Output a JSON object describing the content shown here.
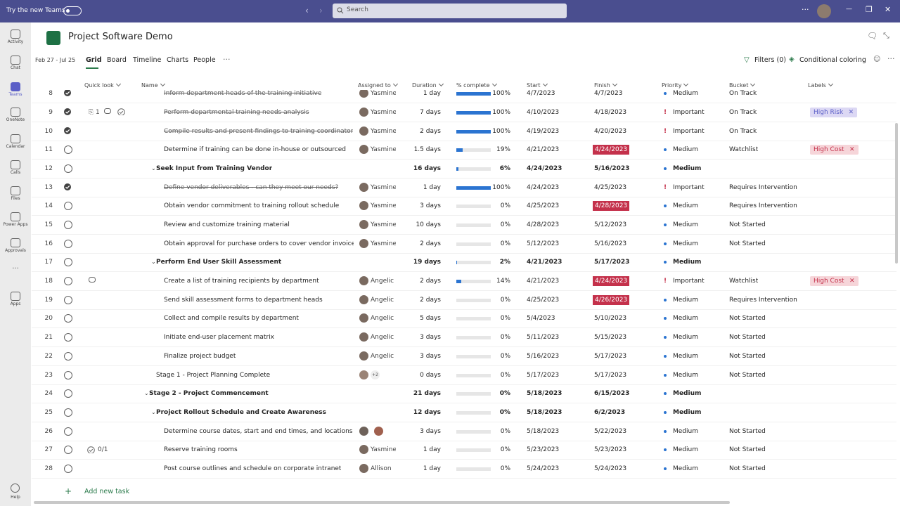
{
  "topbar": {
    "try_new_teams": "Try the new Teams",
    "search": "Search"
  },
  "sidebar": {
    "items": [
      "Activity",
      "Chat",
      "Teams",
      "OneNote",
      "Calendar",
      "Calls",
      "Files",
      "Power Apps",
      "Approvals",
      "Apps"
    ],
    "active": "Teams",
    "more": "...",
    "help": "Help"
  },
  "app": {
    "title": "Project Software Demo",
    "date_range": "Feb 27 - Jul 25",
    "tabs": [
      "Grid",
      "Board",
      "Timeline",
      "Charts",
      "People"
    ],
    "active_tab": "Grid",
    "filters": "Filters (0)",
    "conditional_coloring": "Conditional coloring"
  },
  "table": {
    "columns": [
      "Quick look",
      "Name",
      "Assigned to",
      "Duration",
      "% complete",
      "Start",
      "Finish",
      "Priority",
      "Bucket",
      "Labels"
    ],
    "rows": [
      {
        "n": "8",
        "done": true,
        "level": 2,
        "name": "Inform department heads of the training initiative",
        "assignee": "Yasmine",
        "duration": "1 day",
        "complete": "100%",
        "start": "4/7/2023",
        "finish": "4/7/2023",
        "priority": "Medium",
        "bucket": "On Track"
      },
      {
        "n": "9",
        "done": true,
        "level": 2,
        "attachments": "1",
        "comment": true,
        "checked": true,
        "name": "Perform departmental training needs analysis",
        "assignee": "Yasmine",
        "duration": "7 days",
        "complete": "100%",
        "start": "4/10/2023",
        "finish": "4/18/2023",
        "priority": "Important",
        "bucket": "On Track",
        "label": "High Risk"
      },
      {
        "n": "10",
        "done": true,
        "level": 2,
        "name": "Compile results and present findings to training coordinator",
        "assignee": "Yasmine",
        "duration": "2 days",
        "complete": "100%",
        "start": "4/19/2023",
        "finish": "4/20/2023",
        "priority": "Important",
        "bucket": "On Track"
      },
      {
        "n": "11",
        "done": false,
        "level": 2,
        "name": "Determine if training can be done in-house or outsourced",
        "assignee": "Yasmine",
        "duration": "1.5 days",
        "complete": "19%",
        "start": "4/21/2023",
        "finish": "4/24/2023",
        "late": true,
        "priority": "Medium",
        "bucket": "Watchlist",
        "label": "High Cost"
      },
      {
        "n": "12",
        "done": false,
        "level": 1,
        "summary": true,
        "name": "Seek Input from Training Vendor",
        "duration": "16 days",
        "complete": "6%",
        "start": "4/24/2023",
        "finish": "5/16/2023",
        "priority": "Medium"
      },
      {
        "n": "13",
        "done": true,
        "level": 2,
        "name": "Define vendor deliverables - can they meet our needs?",
        "assignee": "Yasmine",
        "duration": "1 day",
        "complete": "100%",
        "start": "4/24/2023",
        "finish": "4/25/2023",
        "priority": "Important",
        "bucket": "Requires Intervention"
      },
      {
        "n": "14",
        "done": false,
        "level": 2,
        "name": "Obtain vendor commitment to training rollout schedule",
        "assignee": "Yasmine",
        "duration": "3 days",
        "complete": "0%",
        "start": "4/25/2023",
        "finish": "4/28/2023",
        "late": true,
        "priority": "Medium",
        "bucket": "Requires Intervention"
      },
      {
        "n": "15",
        "done": false,
        "level": 2,
        "name": "Review and customize training material",
        "assignee": "Yasmine",
        "duration": "10 days",
        "complete": "0%",
        "start": "4/28/2023",
        "finish": "5/12/2023",
        "priority": "Medium",
        "bucket": "Not Started"
      },
      {
        "n": "16",
        "done": false,
        "level": 2,
        "name": "Obtain approval for purchase orders to cover vendor invoices",
        "assignee": "Yasmine",
        "duration": "2 days",
        "complete": "0%",
        "start": "5/12/2023",
        "finish": "5/16/2023",
        "priority": "Medium",
        "bucket": "Not Started"
      },
      {
        "n": "17",
        "done": false,
        "level": 1,
        "summary": true,
        "name": "Perform End User Skill Assessment",
        "duration": "19 days",
        "complete": "2%",
        "start": "4/21/2023",
        "finish": "5/17/2023",
        "priority": "Medium"
      },
      {
        "n": "18",
        "done": false,
        "level": 2,
        "comment": true,
        "name": "Create a list of training recipients by department",
        "assignee": "Angelic",
        "duration": "2 days",
        "complete": "14%",
        "start": "4/21/2023",
        "finish": "4/24/2023",
        "late": true,
        "priority": "Important",
        "bucket": "Watchlist",
        "label": "High Cost"
      },
      {
        "n": "19",
        "done": false,
        "level": 2,
        "name": "Send skill assessment forms to department heads",
        "assignee": "Angelic",
        "duration": "2 days",
        "complete": "0%",
        "start": "4/25/2023",
        "finish": "4/26/2023",
        "late": true,
        "priority": "Medium",
        "bucket": "Requires Intervention"
      },
      {
        "n": "20",
        "done": false,
        "level": 2,
        "name": "Collect and compile results by department",
        "assignee": "Angelic",
        "duration": "5 days",
        "complete": "0%",
        "start": "5/4/2023",
        "finish": "5/10/2023",
        "priority": "Medium",
        "bucket": "Not Started"
      },
      {
        "n": "21",
        "done": false,
        "level": 2,
        "name": "Initiate end-user placement matrix",
        "assignee": "Angelic",
        "duration": "3 days",
        "complete": "0%",
        "start": "5/11/2023",
        "finish": "5/15/2023",
        "priority": "Medium",
        "bucket": "Not Started"
      },
      {
        "n": "22",
        "done": false,
        "level": 2,
        "name": "Finalize project budget",
        "assignee": "Angelic",
        "duration": "3 days",
        "complete": "0%",
        "start": "5/16/2023",
        "finish": "5/17/2023",
        "priority": "Medium",
        "bucket": "Not Started"
      },
      {
        "n": "23",
        "done": false,
        "level": 1,
        "name": "Stage 1 - Project Planning Complete",
        "assignee_extra": "+2",
        "duration": "0 days",
        "complete": "0%",
        "start": "5/17/2023",
        "finish": "5/17/2023",
        "priority": "Medium",
        "bucket": "Not Started"
      },
      {
        "n": "24",
        "done": false,
        "level": 0,
        "summary": true,
        "name": "Stage 2 - Project Commencement",
        "duration": "21 days",
        "complete": "0%",
        "start": "5/18/2023",
        "finish": "6/15/2023",
        "priority": "Medium"
      },
      {
        "n": "25",
        "done": false,
        "level": 1,
        "summary": true,
        "name": "Project Rollout Schedule and Create Awareness",
        "duration": "12 days",
        "complete": "0%",
        "start": "5/18/2023",
        "finish": "6/2/2023",
        "priority": "Medium"
      },
      {
        "n": "26",
        "done": false,
        "level": 2,
        "avatars": 2,
        "name": "Determine course dates, start and end times, and locations",
        "duration": "3 days",
        "complete": "0%",
        "start": "5/18/2023",
        "finish": "5/22/2023",
        "priority": "Medium",
        "bucket": "Not Started"
      },
      {
        "n": "27",
        "done": false,
        "level": 2,
        "checklist": "0/1",
        "name": "Reserve training rooms",
        "assignee": "Yasmine",
        "duration": "1 day",
        "complete": "0%",
        "start": "5/23/2023",
        "finish": "5/23/2023",
        "priority": "Medium",
        "bucket": "Not Started"
      },
      {
        "n": "28",
        "done": false,
        "level": 2,
        "name": "Post course outlines and schedule on corporate intranet",
        "assignee": "Allison",
        "duration": "1 day",
        "complete": "0%",
        "start": "5/24/2023",
        "finish": "5/24/2023",
        "priority": "Medium",
        "bucket": "Not Started"
      }
    ],
    "add_task": "Add new task"
  }
}
